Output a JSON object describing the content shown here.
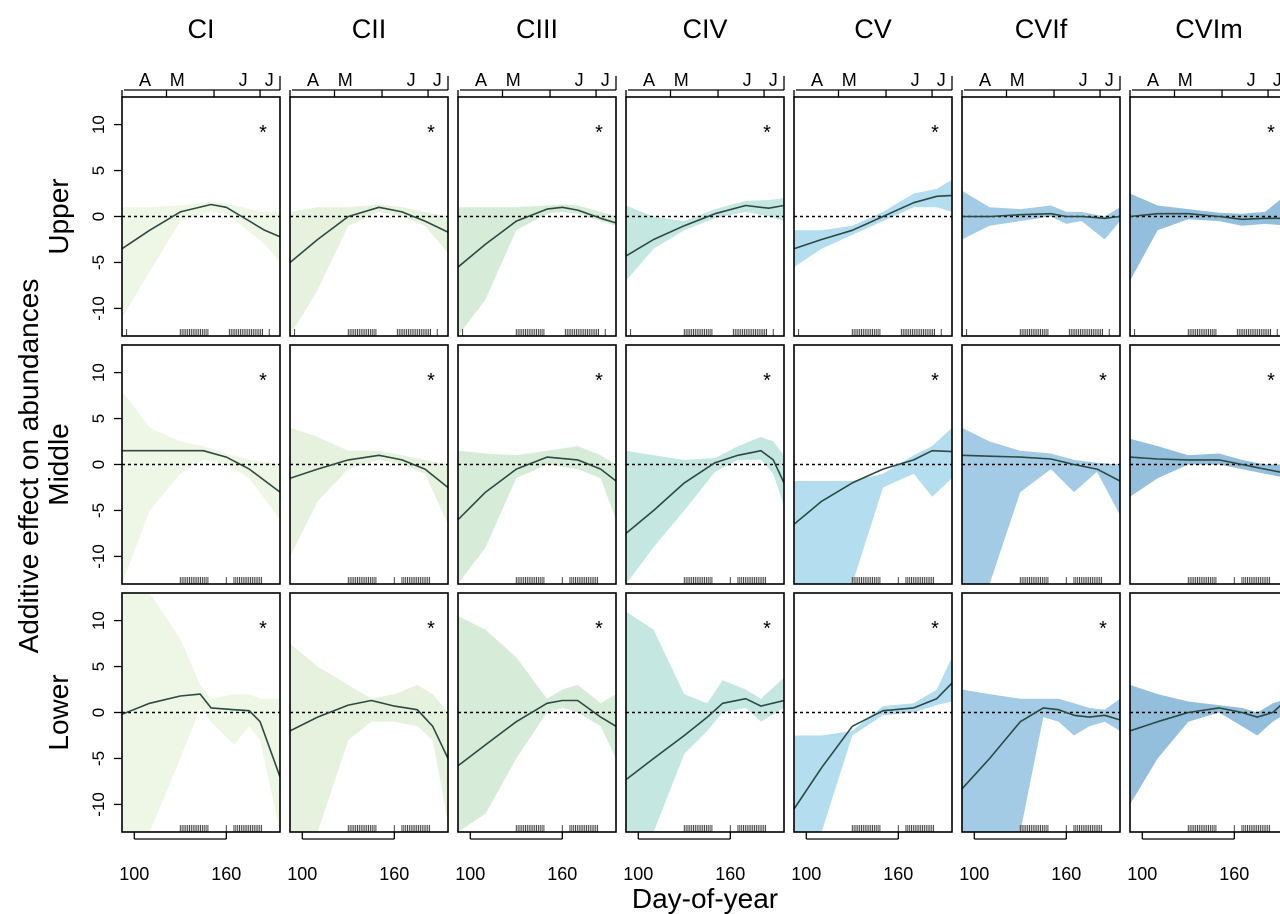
{
  "chart_data": {
    "type": "line",
    "ylabel": "Additive effect on abundances",
    "xlabel": "Day-of-year",
    "xlim": [
      92,
      195
    ],
    "ylim": [
      -13,
      13
    ],
    "x_ticks": [
      {
        "value": 100,
        "label": "100"
      },
      {
        "value": 160,
        "label": "160"
      }
    ],
    "y_ticks": [
      {
        "value": 10,
        "label": "10"
      },
      {
        "value": 5,
        "label": "5"
      },
      {
        "value": 0,
        "label": "0"
      },
      {
        "value": -5,
        "label": "-5"
      },
      {
        "value": -10,
        "label": "-10"
      }
    ],
    "month_ticks": [
      {
        "value": 107,
        "label": "A"
      },
      {
        "value": 128,
        "label": "M"
      },
      {
        "value": 171,
        "label": "J"
      },
      {
        "value": 188,
        "label": "J"
      }
    ],
    "month_boundaries": [
      91,
      121,
      152,
      182
    ],
    "reference_line": 0,
    "significance_marker": "*",
    "columns": [
      {
        "name": "CI",
        "color": "#eef6e6"
      },
      {
        "name": "CII",
        "color": "#e6f2de"
      },
      {
        "name": "CIII",
        "color": "#d6ecd8"
      },
      {
        "name": "CIV",
        "color": "#c5e7e2"
      },
      {
        "name": "CV",
        "color": "#b4def0"
      },
      {
        "name": "CVIf",
        "color": "#a3cbe6"
      },
      {
        "name": "CVIm",
        "color": "#93bedc"
      }
    ],
    "rows": [
      {
        "name": "Upper",
        "rug": [
          [
            95,
            95
          ],
          [
            130,
            148
          ],
          [
            162,
            184
          ],
          [
            188,
            188
          ]
        ]
      },
      {
        "name": "Middle",
        "rug": [
          [
            130,
            148
          ],
          [
            160,
            160
          ],
          [
            165,
            184
          ]
        ]
      },
      {
        "name": "Lower",
        "rug": [
          [
            130,
            148
          ],
          [
            160,
            160
          ],
          [
            165,
            184
          ]
        ]
      }
    ],
    "panels": [
      {
        "column": "CI",
        "row": "Upper",
        "significant": true,
        "x": [
          92,
          110,
          130,
          150,
          160,
          170,
          185,
          195
        ],
        "y": [
          -3.5,
          -1.5,
          0.5,
          1.3,
          1.0,
          0,
          -1.5,
          -2.2
        ],
        "lower": [
          -11,
          -6,
          -0.5,
          0.5,
          0.3,
          -1,
          -3,
          -5
        ],
        "upper": [
          1,
          1,
          1.2,
          1.6,
          1.4,
          1,
          0.5,
          0.5
        ]
      },
      {
        "column": "CII",
        "row": "Upper",
        "significant": true,
        "x": [
          92,
          110,
          130,
          150,
          165,
          180,
          195
        ],
        "y": [
          -5,
          -2.5,
          0,
          1,
          0.5,
          -0.5,
          -1.7
        ],
        "lower": [
          -13,
          -8,
          -1,
          0.5,
          0,
          -1,
          -4
        ],
        "upper": [
          0.5,
          1,
          1,
          1.3,
          1,
          0.5,
          0
        ]
      },
      {
        "column": "CIII",
        "row": "Upper",
        "significant": true,
        "x": [
          92,
          110,
          130,
          150,
          160,
          170,
          185,
          195
        ],
        "y": [
          -5.5,
          -3,
          -0.5,
          0.8,
          1.0,
          0.7,
          -0.2,
          -0.7
        ],
        "lower": [
          -13,
          -9,
          -1.5,
          0.3,
          0.5,
          0.3,
          -0.5,
          -1
        ],
        "upper": [
          1,
          1,
          1,
          1.2,
          1.3,
          1.2,
          0.5,
          0
        ]
      },
      {
        "column": "CIV",
        "row": "Upper",
        "significant": true,
        "x": [
          92,
          110,
          130,
          150,
          170,
          185,
          195
        ],
        "y": [
          -4.3,
          -2.5,
          -1,
          0.3,
          1.2,
          0.9,
          1.2
        ],
        "lower": [
          -7,
          -3.5,
          -1.5,
          -0.2,
          0.5,
          0,
          -0.5
        ],
        "upper": [
          1.2,
          0,
          -0.5,
          0.8,
          1.7,
          1.8,
          2
        ]
      },
      {
        "column": "CV",
        "row": "Upper",
        "significant": true,
        "x": [
          92,
          110,
          130,
          150,
          170,
          185,
          195
        ],
        "y": [
          -3.5,
          -2.5,
          -1.5,
          0,
          1.5,
          2.2,
          2.3
        ],
        "lower": [
          -5.5,
          -3.5,
          -2,
          -0.5,
          1,
          1,
          0.5
        ],
        "upper": [
          -1.5,
          -1.5,
          -1,
          0.5,
          2.5,
          3,
          4
        ]
      },
      {
        "column": "CVIf",
        "row": "Upper",
        "significant": false,
        "x": [
          92,
          110,
          130,
          150,
          160,
          170,
          185,
          195
        ],
        "y": [
          0,
          0,
          0.2,
          0.3,
          0,
          0,
          -0.2,
          0
        ],
        "lower": [
          -2.5,
          -1,
          -0.5,
          0,
          -0.8,
          -0.5,
          -2.5,
          -0.5
        ],
        "upper": [
          2.8,
          1,
          0.8,
          1.2,
          0.5,
          0.5,
          0,
          1
        ]
      },
      {
        "column": "CVIm",
        "row": "Upper",
        "significant": true,
        "x": [
          92,
          110,
          130,
          150,
          165,
          180,
          195
        ],
        "y": [
          0,
          0.3,
          0.3,
          0,
          -0.3,
          -0.2,
          -0.2
        ],
        "lower": [
          -7,
          -1.5,
          -0.3,
          -0.5,
          -1,
          -0.8,
          -1
        ],
        "upper": [
          2.5,
          1.2,
          0.8,
          0.4,
          0.3,
          0.5,
          2.5
        ]
      },
      {
        "column": "CI",
        "row": "Middle",
        "significant": true,
        "x": [
          92,
          110,
          130,
          145,
          160,
          175,
          195
        ],
        "y": [
          1.5,
          1.5,
          1.5,
          1.5,
          0.8,
          -0.5,
          -3
        ],
        "lower": [
          -13,
          -5,
          -1,
          0.5,
          0,
          -1.5,
          -6
        ],
        "upper": [
          8,
          4,
          2.5,
          2,
          1.2,
          0.5,
          0
        ]
      },
      {
        "column": "CII",
        "row": "Middle",
        "significant": true,
        "x": [
          92,
          110,
          130,
          150,
          165,
          180,
          195
        ],
        "y": [
          -1.5,
          -0.5,
          0.5,
          1,
          0.5,
          -0.5,
          -2.5
        ],
        "lower": [
          -10,
          -4,
          -0.5,
          0.5,
          0,
          -1,
          -6.5
        ],
        "upper": [
          4,
          3,
          1.5,
          1.5,
          1,
          0.5,
          0
        ]
      },
      {
        "column": "CIII",
        "row": "Middle",
        "significant": true,
        "x": [
          92,
          110,
          130,
          150,
          170,
          185,
          195
        ],
        "y": [
          -6,
          -3,
          -0.5,
          0.8,
          0.5,
          -0.5,
          -1.8
        ],
        "lower": [
          -13,
          -9,
          -1.5,
          0,
          -0.5,
          -1.5,
          -6
        ],
        "upper": [
          1.5,
          1.2,
          1,
          1.5,
          2,
          1,
          0
        ]
      },
      {
        "column": "CIV",
        "row": "Middle",
        "significant": true,
        "x": [
          92,
          110,
          130,
          150,
          165,
          180,
          188,
          195
        ],
        "y": [
          -7.5,
          -5,
          -2,
          0.2,
          1,
          1.5,
          0.5,
          -2
        ],
        "lower": [
          -13,
          -9,
          -5,
          -0.8,
          0.5,
          0.5,
          -1,
          -4.5
        ],
        "upper": [
          1.5,
          1,
          0.5,
          0.7,
          2,
          3,
          2.5,
          1
        ]
      },
      {
        "column": "CV",
        "row": "Middle",
        "significant": true,
        "x": [
          92,
          110,
          130,
          150,
          170,
          182,
          195
        ],
        "y": [
          -6.5,
          -4,
          -2,
          -0.5,
          0.5,
          1.5,
          1.4
        ],
        "lower": [
          -13,
          -13,
          -13,
          -2.5,
          -1,
          -3.5,
          -1.5
        ],
        "upper": [
          -1.8,
          -1.8,
          -1.8,
          -1,
          1,
          2,
          4
        ]
      },
      {
        "column": "CVIf",
        "row": "Middle",
        "significant": true,
        "x": [
          92,
          110,
          130,
          150,
          165,
          180,
          195
        ],
        "y": [
          1,
          0.9,
          0.8,
          0.6,
          0,
          -0.5,
          -1.8
        ],
        "lower": [
          -13,
          -13,
          -3,
          -0.5,
          -3,
          -0.8,
          -5.5
        ],
        "upper": [
          4,
          2.5,
          1.5,
          1.2,
          0.5,
          0.2,
          0
        ]
      },
      {
        "column": "CVIm",
        "row": "Middle",
        "significant": true,
        "x": [
          92,
          110,
          130,
          150,
          165,
          180,
          195
        ],
        "y": [
          0.8,
          0.6,
          0.5,
          0.5,
          0,
          -0.5,
          -1
        ],
        "lower": [
          -3.5,
          -1.5,
          0,
          0,
          -0.5,
          -1,
          -1.5
        ],
        "upper": [
          2.8,
          2,
          1,
          1.2,
          0.5,
          0,
          0
        ]
      },
      {
        "column": "CI",
        "row": "Lower",
        "significant": true,
        "x": [
          92,
          110,
          130,
          143,
          150,
          165,
          175,
          182,
          195
        ],
        "y": [
          -0.2,
          1,
          1.8,
          2,
          0.5,
          0.3,
          0.2,
          -1,
          -7
        ],
        "lower": [
          -13,
          -13,
          -5,
          0.5,
          -1,
          -3.5,
          -1.5,
          -3,
          -13
        ],
        "upper": [
          13,
          13,
          8,
          3,
          1.5,
          2,
          2,
          1.5,
          1.5
        ]
      },
      {
        "column": "CII",
        "row": "Lower",
        "significant": true,
        "x": [
          92,
          110,
          130,
          145,
          160,
          175,
          185,
          195
        ],
        "y": [
          -2,
          -0.5,
          0.8,
          1.3,
          0.7,
          0.3,
          -1.5,
          -5
        ],
        "lower": [
          -13,
          -13,
          -3,
          -1,
          -1,
          -1.5,
          -3,
          -12
        ],
        "upper": [
          7.5,
          5,
          3,
          1.5,
          2,
          3,
          2,
          0
        ]
      },
      {
        "column": "CIII",
        "row": "Lower",
        "significant": true,
        "x": [
          92,
          110,
          130,
          150,
          160,
          170,
          185,
          195
        ],
        "y": [
          -5.8,
          -3.5,
          -1,
          1,
          1.3,
          1.3,
          -0.5,
          -1.5
        ],
        "lower": [
          -13,
          -11,
          -5,
          0,
          0.5,
          0,
          -1.5,
          -5
        ],
        "upper": [
          10.5,
          9,
          6,
          1.5,
          2.5,
          3,
          1,
          2
        ]
      },
      {
        "column": "CIV",
        "row": "Lower",
        "significant": true,
        "x": [
          92,
          110,
          130,
          145,
          155,
          170,
          180,
          195
        ],
        "y": [
          -7.3,
          -5,
          -2.5,
          -0.5,
          1,
          1.5,
          0.7,
          1.3
        ],
        "lower": [
          -13,
          -13,
          -4.5,
          -2,
          0,
          0.5,
          -1,
          0.5
        ],
        "upper": [
          11,
          9,
          2,
          1,
          3.5,
          2.5,
          1.5,
          3.8
        ]
      },
      {
        "column": "CV",
        "row": "Lower",
        "significant": true,
        "x": [
          92,
          110,
          130,
          150,
          170,
          185,
          195
        ],
        "y": [
          -10.5,
          -6,
          -1.5,
          0.2,
          0.5,
          1.5,
          3.2
        ],
        "lower": [
          -13,
          -13,
          -2.5,
          -0.3,
          0,
          0.8,
          1.2
        ],
        "upper": [
          -2.5,
          -2.5,
          -2,
          0.7,
          1,
          2.5,
          6
        ]
      },
      {
        "column": "CVIf",
        "row": "Lower",
        "significant": true,
        "x": [
          92,
          110,
          130,
          145,
          155,
          165,
          175,
          185,
          195
        ],
        "y": [
          -8.3,
          -5,
          -1,
          0.5,
          0.3,
          -0.3,
          -0.5,
          -0.3,
          -0.8
        ],
        "lower": [
          -13,
          -13,
          -13,
          -0.5,
          -1,
          -2.5,
          -1.5,
          -1,
          -2
        ],
        "upper": [
          2.5,
          2,
          1.5,
          1.5,
          1.5,
          1,
          0.5,
          0.3,
          1.5
        ]
      },
      {
        "column": "CVIm",
        "row": "Lower",
        "significant": false,
        "x": [
          92,
          110,
          130,
          150,
          165,
          175,
          185,
          195
        ],
        "y": [
          -2,
          -1,
          0,
          0.5,
          0,
          -0.5,
          0,
          1.5
        ],
        "lower": [
          -10,
          -5,
          -1,
          0,
          -1.5,
          -2.5,
          -1,
          0
        ],
        "upper": [
          3,
          2,
          1.2,
          0.8,
          0.5,
          0,
          1,
          1.5
        ]
      }
    ]
  }
}
